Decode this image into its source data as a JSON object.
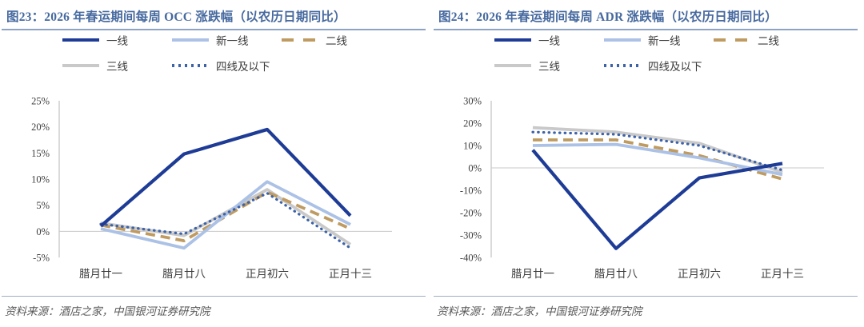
{
  "styles": {
    "title_color": "#46699f",
    "title_rule_color": "#8da3c4",
    "source_rule_color": "#9eadc8",
    "axis_line_color": "#b5b5b5",
    "zero_line_color": "#c9c9c9",
    "tier1_color": "#1e3c96",
    "new_tier1_color": "#abc1e6",
    "tier2_color": "#bf9b61",
    "tier3_color": "#c9c9c9",
    "tier4_color": "#3c62a8"
  },
  "panels": [
    {
      "title": "图23：2026 年春运期间每周 OCC 涨跌幅（以农历日期同比）",
      "source": "资料来源：酒店之家，中国银河证券研究院"
    },
    {
      "title": "图24：2026 年春运期间每周 ADR 涨跌幅（以农历日期同比）",
      "source": "资料来源：酒店之家，中国银河证券研究院"
    }
  ],
  "chart_data": [
    {
      "type": "line",
      "title": "图23：2026 年春运期间每周 OCC 涨跌幅（以农历日期同比）",
      "categories": [
        "腊月廿一",
        "腊月廿八",
        "正月初六",
        "正月十三"
      ],
      "series": [
        {
          "name": "一线",
          "color": "#1e3c96",
          "style": "solid",
          "width": 4.2,
          "values": [
            1.0,
            14.8,
            19.5,
            3.0
          ]
        },
        {
          "name": "新一线",
          "color": "#abc1e6",
          "style": "solid",
          "width": 3.8,
          "values": [
            0.5,
            -3.2,
            9.5,
            1.3
          ]
        },
        {
          "name": "二线",
          "color": "#bf9b61",
          "style": "dashed",
          "width": 3.8,
          "values": [
            1.2,
            -1.8,
            7.5,
            0.5
          ]
        },
        {
          "name": "三线",
          "color": "#c9c9c9",
          "style": "solid",
          "width": 3.8,
          "values": [
            1.6,
            -0.8,
            8.0,
            -2.5
          ]
        },
        {
          "name": "四线及以下",
          "color": "#3c62a8",
          "style": "dotted",
          "width": 3.2,
          "values": [
            1.4,
            -0.5,
            7.3,
            -3.2
          ]
        }
      ],
      "xlabel": "",
      "ylabel": "",
      "ylim": [
        -5,
        25
      ],
      "yticks": [
        25,
        20,
        15,
        10,
        5,
        0,
        -5
      ],
      "tick_suffix": "%",
      "grid": "zero-line-only",
      "legend_position": "top"
    },
    {
      "type": "line",
      "title": "图24：2026 年春运期间每周 ADR 涨跌幅（以农历日期同比）",
      "categories": [
        "腊月廿一",
        "腊月廿八",
        "正月初六",
        "正月十三"
      ],
      "series": [
        {
          "name": "一线",
          "color": "#1e3c96",
          "style": "solid",
          "width": 4.2,
          "values": [
            8.0,
            -36.0,
            -4.5,
            2.0
          ]
        },
        {
          "name": "新一线",
          "color": "#abc1e6",
          "style": "solid",
          "width": 3.8,
          "values": [
            10.0,
            10.5,
            4.5,
            -3.0
          ]
        },
        {
          "name": "二线",
          "color": "#bf9b61",
          "style": "dashed",
          "width": 3.8,
          "values": [
            12.5,
            12.5,
            5.5,
            -5.0
          ]
        },
        {
          "name": "三线",
          "color": "#c9c9c9",
          "style": "solid",
          "width": 3.8,
          "values": [
            18.0,
            16.0,
            11.0,
            -2.0
          ]
        },
        {
          "name": "四线及以下",
          "color": "#3c62a8",
          "style": "dotted",
          "width": 3.2,
          "values": [
            16.0,
            15.0,
            10.0,
            -1.0
          ]
        }
      ],
      "xlabel": "",
      "ylabel": "",
      "ylim": [
        -40,
        30
      ],
      "yticks": [
        30,
        20,
        10,
        0,
        -10,
        -20,
        -30,
        -40
      ],
      "tick_suffix": "%",
      "grid": "zero-line-only",
      "legend_position": "top"
    }
  ]
}
